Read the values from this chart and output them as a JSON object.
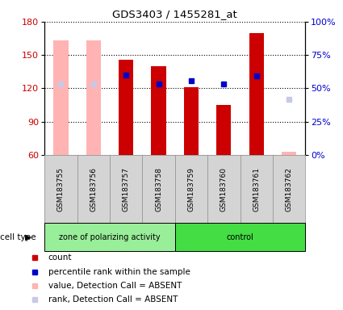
{
  "title": "GDS3403 / 1455281_at",
  "samples": [
    "GSM183755",
    "GSM183756",
    "GSM183757",
    "GSM183758",
    "GSM183759",
    "GSM183760",
    "GSM183761",
    "GSM183762"
  ],
  "ylim_left": [
    60,
    180
  ],
  "ylim_right": [
    0,
    100
  ],
  "yticks_left": [
    60,
    90,
    120,
    150,
    180
  ],
  "yticks_right": [
    0,
    25,
    50,
    75,
    100
  ],
  "ytick_labels_right": [
    "0%",
    "25%",
    "50%",
    "75%",
    "100%"
  ],
  "count_color": "#cc0000",
  "count_absent_color": "#ffb3b3",
  "rank_color": "#0000cc",
  "rank_absent_color": "#c8c8e8",
  "group1_label": "zone of polarizing activity",
  "group2_label": "control",
  "group1_color": "#99ee99",
  "group2_color": "#44dd44",
  "group1_count": 4,
  "group2_count": 4,
  "count_values": [
    null,
    null,
    146,
    140,
    121,
    105,
    170,
    null
  ],
  "count_absent_values": [
    163,
    163,
    null,
    null,
    null,
    null,
    null,
    63
  ],
  "rank_values": [
    null,
    null,
    132,
    124,
    127,
    124,
    131,
    null
  ],
  "rank_absent_values": [
    124,
    124,
    null,
    null,
    null,
    null,
    null,
    110
  ],
  "legend_items": [
    {
      "color": "#cc0000",
      "label": "count"
    },
    {
      "color": "#0000cc",
      "label": "percentile rank within the sample"
    },
    {
      "color": "#ffb3b3",
      "label": "value, Detection Call = ABSENT"
    },
    {
      "color": "#c8c8e8",
      "label": "rank, Detection Call = ABSENT"
    }
  ]
}
